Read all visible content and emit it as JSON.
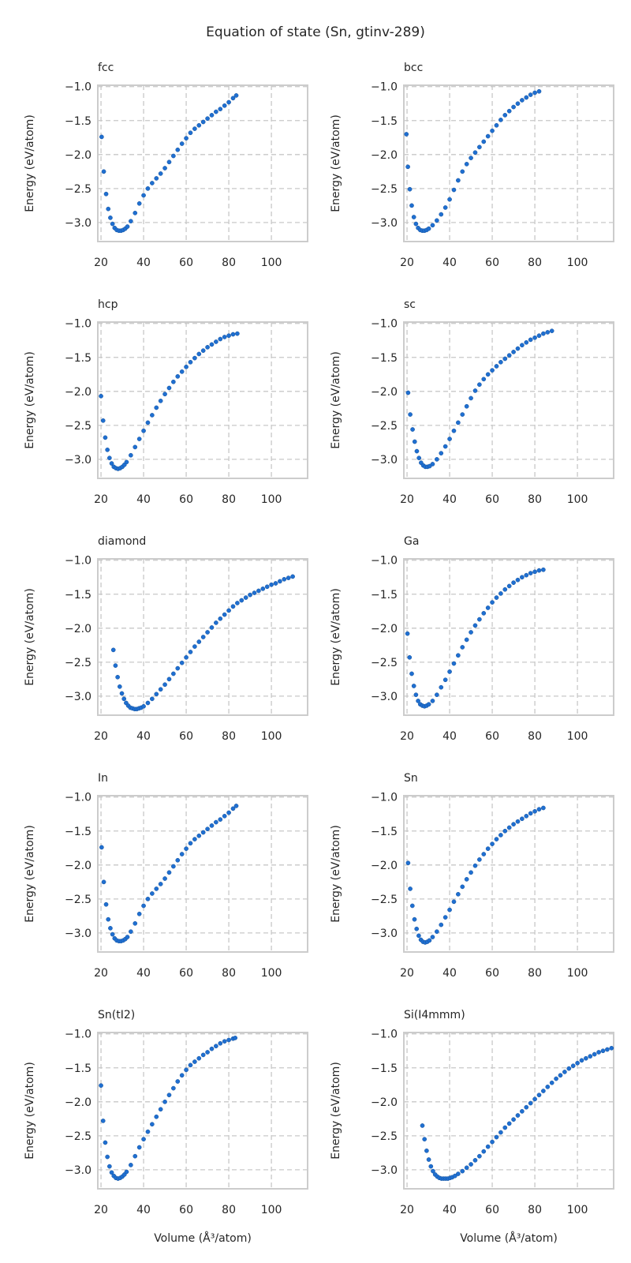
{
  "title": "Equation of state (Sn, gtinv-289)",
  "axes": {
    "xlabel": "Volume (Å³/atom)",
    "ylabel": "Energy (eV/atom)",
    "xlim": [
      18.5,
      117
    ],
    "ylim": [
      -3.28,
      -0.98
    ],
    "xticks": [
      "20",
      "40",
      "60",
      "80",
      "100"
    ],
    "yticks": [
      "−1.0",
      "−1.5",
      "−2.0",
      "−2.5",
      "−3.0"
    ],
    "grid": true,
    "marker_color": "#1f6fd1"
  },
  "chart_data": [
    {
      "type": "scatter",
      "title": "fcc",
      "x": [
        20.3,
        21.3,
        22.4,
        23.4,
        24.4,
        25.4,
        26.4,
        27.4,
        28.4,
        29.4,
        30.4,
        31.4,
        32.4,
        34,
        36,
        38,
        40,
        42,
        44,
        46,
        48,
        50,
        52,
        54,
        56,
        58,
        60,
        62,
        64,
        66,
        68,
        70,
        72,
        74,
        76,
        78,
        80,
        82,
        83.5
      ],
      "y": [
        -1.74,
        -2.25,
        -2.58,
        -2.8,
        -2.93,
        -3.02,
        -3.08,
        -3.11,
        -3.12,
        -3.12,
        -3.11,
        -3.09,
        -3.06,
        -2.98,
        -2.86,
        -2.72,
        -2.6,
        -2.5,
        -2.42,
        -2.35,
        -2.28,
        -2.2,
        -2.11,
        -2.02,
        -1.93,
        -1.84,
        -1.76,
        -1.68,
        -1.62,
        -1.57,
        -1.52,
        -1.47,
        -1.42,
        -1.37,
        -1.33,
        -1.28,
        -1.23,
        -1.17,
        -1.13
      ]
    },
    {
      "type": "scatter",
      "title": "bcc",
      "x": [
        19.7,
        20.4,
        21.3,
        22.2,
        23.2,
        24.2,
        25.2,
        26.2,
        27.2,
        28.2,
        29.2,
        30.2,
        32,
        34,
        36,
        38,
        40,
        42,
        44,
        46,
        48,
        50,
        52,
        54,
        56,
        58,
        60,
        62,
        64,
        66,
        68,
        70,
        72,
        74,
        76,
        78,
        80,
        82
      ],
      "y": [
        -1.7,
        -2.18,
        -2.51,
        -2.75,
        -2.92,
        -3.02,
        -3.08,
        -3.11,
        -3.12,
        -3.12,
        -3.11,
        -3.09,
        -3.04,
        -2.97,
        -2.88,
        -2.78,
        -2.66,
        -2.52,
        -2.38,
        -2.25,
        -2.14,
        -2.05,
        -1.97,
        -1.89,
        -1.81,
        -1.73,
        -1.65,
        -1.57,
        -1.49,
        -1.42,
        -1.36,
        -1.3,
        -1.25,
        -1.2,
        -1.16,
        -1.12,
        -1.09,
        -1.07
      ]
    },
    {
      "type": "scatter",
      "title": "hcp",
      "x": [
        20,
        21,
        22,
        23,
        24,
        25,
        26,
        27,
        28,
        29,
        30,
        31,
        32,
        34,
        36,
        38,
        40,
        42,
        44,
        46,
        48,
        50,
        52,
        54,
        56,
        58,
        60,
        62,
        64,
        66,
        68,
        70,
        72,
        74,
        76,
        78,
        80,
        82,
        84
      ],
      "y": [
        -2.07,
        -2.43,
        -2.68,
        -2.86,
        -2.98,
        -3.06,
        -3.11,
        -3.13,
        -3.14,
        -3.13,
        -3.11,
        -3.08,
        -3.04,
        -2.94,
        -2.82,
        -2.7,
        -2.58,
        -2.46,
        -2.35,
        -2.24,
        -2.14,
        -2.04,
        -1.95,
        -1.86,
        -1.78,
        -1.71,
        -1.64,
        -1.57,
        -1.51,
        -1.45,
        -1.4,
        -1.35,
        -1.31,
        -1.27,
        -1.23,
        -1.2,
        -1.18,
        -1.16,
        -1.15
      ]
    },
    {
      "type": "scatter",
      "title": "sc",
      "x": [
        20.5,
        21.5,
        22.6,
        23.6,
        24.6,
        25.6,
        26.6,
        27.6,
        28.6,
        29.6,
        30.6,
        32,
        34,
        36,
        38,
        40,
        42,
        44,
        46,
        48,
        50,
        52,
        54,
        56,
        58,
        60,
        62,
        64,
        66,
        68,
        70,
        72,
        74,
        76,
        78,
        80,
        82,
        84,
        86,
        88
      ],
      "y": [
        -2.02,
        -2.34,
        -2.56,
        -2.74,
        -2.88,
        -2.98,
        -3.05,
        -3.09,
        -3.11,
        -3.11,
        -3.1,
        -3.07,
        -3.0,
        -2.91,
        -2.81,
        -2.7,
        -2.58,
        -2.46,
        -2.34,
        -2.22,
        -2.1,
        -1.99,
        -1.9,
        -1.82,
        -1.75,
        -1.69,
        -1.63,
        -1.57,
        -1.52,
        -1.47,
        -1.42,
        -1.37,
        -1.32,
        -1.28,
        -1.24,
        -1.21,
        -1.18,
        -1.15,
        -1.13,
        -1.11
      ]
    },
    {
      "type": "scatter",
      "title": "diamond",
      "x": [
        25.8,
        26.8,
        27.8,
        28.8,
        29.8,
        30.8,
        31.8,
        32.8,
        33.8,
        34.8,
        35.8,
        36.8,
        37.8,
        38.8,
        40,
        42,
        44,
        46,
        48,
        50,
        52,
        54,
        56,
        58,
        60,
        62,
        64,
        66,
        68,
        70,
        72,
        74,
        76,
        78,
        80,
        82,
        84,
        86,
        88,
        90,
        92,
        94,
        96,
        98,
        100,
        102,
        104,
        106,
        108,
        110
      ],
      "y": [
        -2.32,
        -2.55,
        -2.72,
        -2.86,
        -2.96,
        -3.04,
        -3.1,
        -3.14,
        -3.17,
        -3.18,
        -3.19,
        -3.19,
        -3.18,
        -3.17,
        -3.15,
        -3.1,
        -3.04,
        -2.97,
        -2.9,
        -2.83,
        -2.75,
        -2.67,
        -2.59,
        -2.51,
        -2.43,
        -2.35,
        -2.27,
        -2.2,
        -2.13,
        -2.06,
        -1.99,
        -1.92,
        -1.86,
        -1.8,
        -1.74,
        -1.68,
        -1.63,
        -1.59,
        -1.55,
        -1.51,
        -1.48,
        -1.45,
        -1.42,
        -1.39,
        -1.36,
        -1.34,
        -1.31,
        -1.28,
        -1.26,
        -1.24
      ]
    },
    {
      "type": "scatter",
      "title": "Ga",
      "x": [
        20.2,
        21.2,
        22.2,
        23.2,
        24.2,
        25.2,
        26.2,
        27.2,
        28.2,
        29.2,
        30.2,
        32,
        34,
        36,
        38,
        40,
        42,
        44,
        46,
        48,
        50,
        52,
        54,
        56,
        58,
        60,
        62,
        64,
        66,
        68,
        70,
        72,
        74,
        76,
        78,
        80,
        82,
        84
      ],
      "y": [
        -2.08,
        -2.43,
        -2.67,
        -2.85,
        -2.98,
        -3.07,
        -3.12,
        -3.14,
        -3.15,
        -3.14,
        -3.12,
        -3.07,
        -2.98,
        -2.87,
        -2.76,
        -2.64,
        -2.52,
        -2.4,
        -2.28,
        -2.17,
        -2.06,
        -1.96,
        -1.87,
        -1.78,
        -1.7,
        -1.62,
        -1.55,
        -1.49,
        -1.43,
        -1.38,
        -1.33,
        -1.29,
        -1.25,
        -1.22,
        -1.19,
        -1.17,
        -1.15,
        -1.14
      ]
    },
    {
      "type": "scatter",
      "title": "In",
      "x": [
        20.3,
        21.3,
        22.4,
        23.4,
        24.4,
        25.4,
        26.4,
        27.4,
        28.4,
        29.4,
        30.4,
        31.4,
        32.4,
        34,
        36,
        38,
        40,
        42,
        44,
        46,
        48,
        50,
        52,
        54,
        56,
        58,
        60,
        62,
        64,
        66,
        68,
        70,
        72,
        74,
        76,
        78,
        80,
        82,
        83.5
      ],
      "y": [
        -1.74,
        -2.25,
        -2.58,
        -2.8,
        -2.93,
        -3.02,
        -3.08,
        -3.11,
        -3.12,
        -3.12,
        -3.11,
        -3.09,
        -3.06,
        -2.98,
        -2.86,
        -2.72,
        -2.6,
        -2.5,
        -2.42,
        -2.35,
        -2.28,
        -2.2,
        -2.11,
        -2.02,
        -1.93,
        -1.84,
        -1.76,
        -1.68,
        -1.62,
        -1.57,
        -1.52,
        -1.47,
        -1.42,
        -1.37,
        -1.33,
        -1.28,
        -1.23,
        -1.17,
        -1.13
      ]
    },
    {
      "type": "scatter",
      "title": "Sn",
      "x": [
        20.5,
        21.5,
        22.5,
        23.5,
        24.5,
        25.5,
        26.5,
        27.5,
        28.5,
        29.5,
        30.5,
        32,
        34,
        36,
        38,
        40,
        42,
        44,
        46,
        48,
        50,
        52,
        54,
        56,
        58,
        60,
        62,
        64,
        66,
        68,
        70,
        72,
        74,
        76,
        78,
        80,
        82,
        84
      ],
      "y": [
        -1.97,
        -2.35,
        -2.6,
        -2.8,
        -2.94,
        -3.04,
        -3.1,
        -3.13,
        -3.14,
        -3.13,
        -3.11,
        -3.06,
        -2.98,
        -2.88,
        -2.77,
        -2.66,
        -2.54,
        -2.43,
        -2.32,
        -2.21,
        -2.11,
        -2.01,
        -1.92,
        -1.84,
        -1.76,
        -1.69,
        -1.62,
        -1.56,
        -1.5,
        -1.45,
        -1.4,
        -1.36,
        -1.32,
        -1.28,
        -1.24,
        -1.21,
        -1.18,
        -1.16
      ]
    },
    {
      "type": "scatter",
      "title": "Sn(tI2)",
      "x": [
        20,
        21,
        22,
        23,
        24,
        25,
        26,
        27,
        28,
        29,
        30,
        31,
        32,
        34,
        36,
        38,
        40,
        42,
        44,
        46,
        48,
        50,
        52,
        54,
        56,
        58,
        60,
        62,
        64,
        66,
        68,
        70,
        72,
        74,
        76,
        78,
        80,
        82,
        83
      ],
      "y": [
        -1.76,
        -2.28,
        -2.6,
        -2.81,
        -2.95,
        -3.04,
        -3.09,
        -3.12,
        -3.13,
        -3.12,
        -3.1,
        -3.07,
        -3.03,
        -2.93,
        -2.8,
        -2.67,
        -2.55,
        -2.44,
        -2.33,
        -2.22,
        -2.11,
        -2.0,
        -1.9,
        -1.8,
        -1.7,
        -1.61,
        -1.53,
        -1.46,
        -1.41,
        -1.36,
        -1.31,
        -1.27,
        -1.22,
        -1.18,
        -1.14,
        -1.11,
        -1.09,
        -1.07,
        -1.06
      ]
    },
    {
      "type": "scatter",
      "title": "Si(I4mmm)",
      "x": [
        27.2,
        28.2,
        29.2,
        30.2,
        31.2,
        32.2,
        33.2,
        34.2,
        35.2,
        36.2,
        37.2,
        38.2,
        39.2,
        40.2,
        41.2,
        42.5,
        44,
        46,
        48,
        50,
        52,
        54,
        56,
        58,
        60,
        62,
        64,
        66,
        68,
        70,
        72,
        74,
        76,
        78,
        80,
        82,
        84,
        86,
        88,
        90,
        92,
        94,
        96,
        98,
        100,
        102,
        104,
        106,
        108,
        110,
        112,
        114,
        116
      ],
      "y": [
        -2.35,
        -2.55,
        -2.72,
        -2.85,
        -2.95,
        -3.02,
        -3.07,
        -3.1,
        -3.12,
        -3.13,
        -3.13,
        -3.13,
        -3.13,
        -3.12,
        -3.11,
        -3.09,
        -3.06,
        -3.02,
        -2.97,
        -2.92,
        -2.86,
        -2.8,
        -2.73,
        -2.66,
        -2.59,
        -2.52,
        -2.45,
        -2.38,
        -2.32,
        -2.26,
        -2.2,
        -2.14,
        -2.08,
        -2.02,
        -1.96,
        -1.9,
        -1.84,
        -1.78,
        -1.72,
        -1.66,
        -1.61,
        -1.56,
        -1.51,
        -1.47,
        -1.43,
        -1.39,
        -1.36,
        -1.33,
        -1.3,
        -1.27,
        -1.25,
        -1.23,
        -1.21
      ]
    }
  ]
}
